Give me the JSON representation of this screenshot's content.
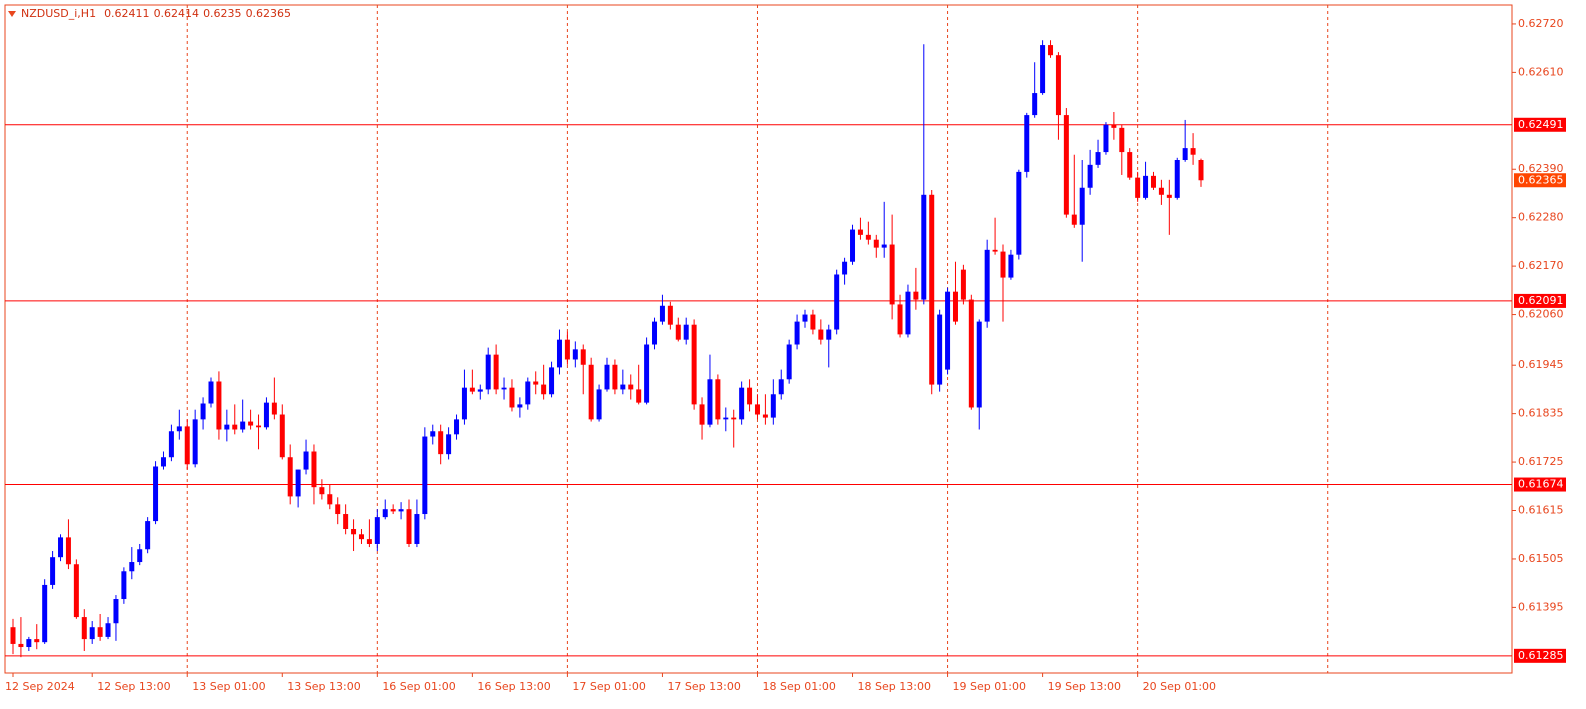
{
  "chart_data": {
    "type": "candlestick",
    "symbol": "NZDUSD_i,H1",
    "up_color": "#0000ff",
    "down_color": "#ff0000",
    "level_color": "#ff0000",
    "ylim": [
      0.61246,
      0.62763
    ],
    "yticks": [
      {
        "value": 0.6272,
        "label": "0.62720"
      },
      {
        "value": 0.6261,
        "label": "0.62610"
      },
      {
        "value": 0.6239,
        "label": "0.62390"
      },
      {
        "value": 0.6228,
        "label": "0.62280"
      },
      {
        "value": 0.6217,
        "label": "0.62170"
      },
      {
        "value": 0.6206,
        "label": "0.62060"
      },
      {
        "value": 0.61945,
        "label": "0.61945"
      },
      {
        "value": 0.61835,
        "label": "0.61835"
      },
      {
        "value": 0.61725,
        "label": "0.61725"
      },
      {
        "value": 0.61615,
        "label": "0.61615"
      },
      {
        "value": 0.61505,
        "label": "0.61505"
      },
      {
        "value": 0.61395,
        "label": "0.61395"
      }
    ],
    "levels": [
      0.62491,
      0.62091,
      0.61674,
      0.61285
    ],
    "categories": [
      "12 Sep 2024",
      null,
      null,
      null,
      null,
      null,
      null,
      null,
      null,
      null,
      "12 Sep 13:00",
      null,
      null,
      null,
      null,
      null,
      null,
      null,
      null,
      null,
      null,
      null,
      "13 Sep 01:00",
      null,
      null,
      null,
      null,
      null,
      null,
      null,
      null,
      null,
      null,
      null,
      "13 Sep 13:00",
      null,
      null,
      null,
      null,
      null,
      null,
      null,
      null,
      null,
      null,
      null,
      "16 Sep 01:00",
      null,
      null,
      null,
      null,
      null,
      null,
      null,
      null,
      null,
      null,
      null,
      "16 Sep 13:00",
      null,
      null,
      null,
      null,
      null,
      null,
      null,
      null,
      null,
      null,
      null,
      "17 Sep 01:00",
      null,
      null,
      null,
      null,
      null,
      null,
      null,
      null,
      null,
      null,
      null,
      "17 Sep 13:00",
      null,
      null,
      null,
      null,
      null,
      null,
      null,
      null,
      null,
      null,
      null,
      "18 Sep 01:00",
      null,
      null,
      null,
      null,
      null,
      null,
      null,
      null,
      null,
      null,
      null,
      "18 Sep 13:00",
      null,
      null,
      null,
      null,
      null,
      null,
      null,
      null,
      null,
      null,
      null,
      "19 Sep 01:00",
      null,
      null,
      null,
      null,
      null,
      null,
      null,
      null,
      null,
      null,
      null,
      "19 Sep 13:00",
      null,
      null,
      null,
      null,
      null,
      null,
      null,
      null,
      null,
      null,
      null,
      "20 Sep 01:00",
      null,
      null,
      null,
      null,
      null,
      null,
      null,
      null
    ],
    "open": [
      0.6135,
      0.61312,
      0.61305,
      0.61323,
      0.61316,
      0.61446,
      0.61509,
      0.61554,
      0.61493,
      0.61373,
      0.61323,
      0.6135,
      0.61328,
      0.61359,
      0.61414,
      0.61477,
      0.61498,
      0.61527,
      0.61591,
      0.61715,
      0.61736,
      0.61795,
      0.61806,
      0.6172,
      0.61822,
      0.61858,
      0.61908,
      0.61799,
      0.6181,
      0.61799,
      0.61817,
      0.61808,
      0.61804,
      0.6186,
      0.61833,
      0.61736,
      0.61647,
      0.61708,
      0.61749,
      0.61668,
      0.61652,
      0.61629,
      0.61607,
      0.61573,
      0.61561,
      0.6155,
      0.61539,
      0.616,
      0.61618,
      0.61613,
      0.61618,
      0.61539,
      0.61607,
      0.61783,
      0.61795,
      0.61743,
      0.61788,
      0.61822,
      0.61894,
      0.61885,
      0.6189,
      0.61969,
      0.6189,
      0.61894,
      0.61849,
      0.61856,
      0.61908,
      0.61901,
      0.61879,
      0.6194,
      0.62003,
      0.61958,
      0.61981,
      0.61946,
      0.61822,
      0.6189,
      0.61946,
      0.6189,
      0.61901,
      0.6189,
      0.6186,
      0.61992,
      0.62044,
      0.6208,
      0.62037,
      0.62003,
      0.62037,
      0.61856,
      0.6181,
      0.61913,
      0.61822,
      0.61826,
      0.61822,
      0.61894,
      0.61856,
      0.61833,
      0.61826,
      0.61879,
      0.61913,
      0.61992,
      0.62044,
      0.6206,
      0.62026,
      0.62003,
      0.62026,
      0.62151,
      0.6218,
      0.62253,
      0.62241,
      0.6223,
      0.62212,
      0.62219,
      0.62083,
      0.62015,
      0.62112,
      0.62094,
      0.62332,
      0.61901,
      0.61935,
      0.62112,
      0.62162,
      0.62094,
      0.61849,
      0.62044,
      0.62207,
      0.62203,
      0.62144,
      0.62196,
      0.62384,
      0.62513,
      0.62563,
      0.62672,
      0.62649,
      0.62513,
      0.62287,
      0.62264,
      0.62348,
      0.624,
      0.62429,
      0.62491,
      0.62484,
      0.62429,
      0.62371,
      0.62325,
      0.62375,
      0.62348,
      0.62332,
      0.62325,
      0.62411,
      0.62438,
      0.62411
    ],
    "high": [
      0.61369,
      0.61373,
      0.61328,
      0.61357,
      0.61459,
      0.61523,
      0.61561,
      0.61595,
      0.61504,
      0.61391,
      0.61364,
      0.6138,
      0.61373,
      0.61423,
      0.61486,
      0.61532,
      0.61539,
      0.616,
      0.61727,
      0.61749,
      0.6181,
      0.61844,
      0.61822,
      0.61844,
      0.61872,
      0.61917,
      0.61931,
      0.61844,
      0.61856,
      0.61867,
      0.61844,
      0.61833,
      0.61872,
      0.61917,
      0.61856,
      0.61765,
      0.61708,
      0.61776,
      0.61765,
      0.61686,
      0.61674,
      0.61645,
      0.61629,
      0.61595,
      0.61573,
      0.61595,
      0.61618,
      0.6164,
      0.61629,
      0.61634,
      0.6164,
      0.6164,
      0.61804,
      0.6181,
      0.6181,
      0.61804,
      0.61833,
      0.61935,
      0.61935,
      0.61901,
      0.61985,
      0.61992,
      0.61917,
      0.61913,
      0.61872,
      0.61917,
      0.61931,
      0.61946,
      0.61953,
      0.62026,
      0.62021,
      0.61999,
      0.61992,
      0.61962,
      0.61901,
      0.61962,
      0.61958,
      0.61935,
      0.61924,
      0.61946,
      0.62008,
      0.62053,
      0.62105,
      0.62089,
      0.62053,
      0.62053,
      0.62049,
      0.61872,
      0.61969,
      0.61924,
      0.61849,
      0.61844,
      0.61908,
      0.61913,
      0.61879,
      0.61879,
      0.61913,
      0.61935,
      0.62003,
      0.6206,
      0.62071,
      0.62071,
      0.62049,
      0.62037,
      0.62162,
      0.62189,
      0.62264,
      0.6228,
      0.62271,
      0.62241,
      0.62316,
      0.62287,
      0.62105,
      0.62128,
      0.62166,
      0.62674,
      0.62343,
      0.62071,
      0.62121,
      0.6218,
      0.62173,
      0.62105,
      0.62049,
      0.6223,
      0.6228,
      0.62219,
      0.62207,
      0.62389,
      0.62518,
      0.62633,
      0.62683,
      0.62683,
      0.62656,
      0.62529,
      0.62423,
      0.62411,
      0.62434,
      0.62457,
      0.62497,
      0.6252,
      0.62491,
      0.62438,
      0.62384,
      0.62407,
      0.62384,
      0.62366,
      0.62366,
      0.62416,
      0.62502,
      0.62472,
      0.62414
    ],
    "low": [
      0.61289,
      0.61282,
      0.61296,
      0.613,
      0.61312,
      0.61437,
      0.615,
      0.61482,
      0.61369,
      0.61296,
      0.61312,
      0.61319,
      0.61323,
      0.61319,
      0.61403,
      0.61459,
      0.61491,
      0.61518,
      0.61584,
      0.61708,
      0.61727,
      0.61776,
      0.61708,
      0.61713,
      0.61799,
      0.61849,
      0.61776,
      0.61772,
      0.61788,
      0.61792,
      0.61799,
      0.61754,
      0.61799,
      0.61822,
      0.61731,
      0.61629,
      0.61622,
      0.61697,
      0.61629,
      0.6164,
      0.61618,
      0.61584,
      0.61561,
      0.61523,
      0.61539,
      0.61532,
      0.61523,
      0.61595,
      0.61607,
      0.61595,
      0.61532,
      0.61532,
      0.61595,
      0.61765,
      0.6172,
      0.61731,
      0.61776,
      0.6181,
      0.61879,
      0.61867,
      0.61879,
      0.61879,
      0.61867,
      0.6184,
      0.61826,
      0.61844,
      0.61879,
      0.61867,
      0.61872,
      0.61924,
      0.61946,
      0.6194,
      0.61879,
      0.61817,
      0.61817,
      0.61885,
      0.61879,
      0.61879,
      0.61867,
      0.61856,
      0.61856,
      0.61981,
      0.62037,
      0.62026,
      0.61999,
      0.61992,
      0.61844,
      0.61776,
      0.61804,
      0.6181,
      0.61795,
      0.61758,
      0.6181,
      0.6184,
      0.61822,
      0.6181,
      0.6181,
      0.61867,
      0.61903,
      0.61981,
      0.6203,
      0.62015,
      0.61992,
      0.6194,
      0.62015,
      0.62128,
      0.62173,
      0.6223,
      0.62219,
      0.62189,
      0.62189,
      0.62049,
      0.62008,
      0.62008,
      0.62071,
      0.62083,
      0.61879,
      0.61885,
      0.61924,
      0.62037,
      0.62083,
      0.61844,
      0.61799,
      0.6203,
      0.62196,
      0.62044,
      0.62139,
      0.62185,
      0.62371,
      0.62507,
      0.62559,
      0.62643,
      0.62457,
      0.6228,
      0.62257,
      0.6218,
      0.62332,
      0.62393,
      0.62423,
      0.62457,
      0.62377,
      0.62366,
      0.62316,
      0.62321,
      0.62343,
      0.62309,
      0.62241,
      0.62321,
      0.62407,
      0.624,
      0.6235
    ],
    "close": [
      0.61312,
      0.61305,
      0.61323,
      0.61316,
      0.61446,
      0.61509,
      0.61554,
      0.61493,
      0.61373,
      0.61323,
      0.6135,
      0.61328,
      0.61359,
      0.61414,
      0.61477,
      0.61498,
      0.61527,
      0.61591,
      0.61715,
      0.61736,
      0.61795,
      0.61806,
      0.6172,
      0.61822,
      0.61858,
      0.61908,
      0.61799,
      0.6181,
      0.61799,
      0.61817,
      0.61808,
      0.61804,
      0.6186,
      0.61833,
      0.61736,
      0.61647,
      0.61708,
      0.61749,
      0.61668,
      0.61652,
      0.61629,
      0.61607,
      0.61573,
      0.61561,
      0.6155,
      0.61539,
      0.616,
      0.61618,
      0.61613,
      0.61618,
      0.61539,
      0.61607,
      0.61783,
      0.61795,
      0.61743,
      0.61788,
      0.61822,
      0.61894,
      0.61885,
      0.6189,
      0.61969,
      0.6189,
      0.61894,
      0.61849,
      0.61856,
      0.61908,
      0.61901,
      0.61879,
      0.6194,
      0.62003,
      0.61958,
      0.61981,
      0.61946,
      0.61822,
      0.6189,
      0.61946,
      0.6189,
      0.61901,
      0.6189,
      0.6186,
      0.61992,
      0.62044,
      0.6208,
      0.62037,
      0.62003,
      0.62037,
      0.61856,
      0.6181,
      0.61913,
      0.61822,
      0.61826,
      0.61822,
      0.61894,
      0.61856,
      0.61833,
      0.61826,
      0.61879,
      0.61913,
      0.61992,
      0.62044,
      0.6206,
      0.62026,
      0.62003,
      0.62026,
      0.62151,
      0.6218,
      0.62253,
      0.62241,
      0.6223,
      0.62212,
      0.62219,
      0.62083,
      0.62015,
      0.62112,
      0.62094,
      0.62332,
      0.61901,
      0.6206,
      0.62112,
      0.62044,
      0.62094,
      0.61849,
      0.62044,
      0.62207,
      0.62203,
      0.62144,
      0.62196,
      0.62384,
      0.62513,
      0.62563,
      0.62672,
      0.62649,
      0.62513,
      0.62287,
      0.62264,
      0.62348,
      0.624,
      0.62429,
      0.62491,
      0.62484,
      0.62429,
      0.62371,
      0.62325,
      0.62375,
      0.62348,
      0.62332,
      0.62325,
      0.62411,
      0.62438,
      0.62423,
      0.62365
    ]
  }
}
